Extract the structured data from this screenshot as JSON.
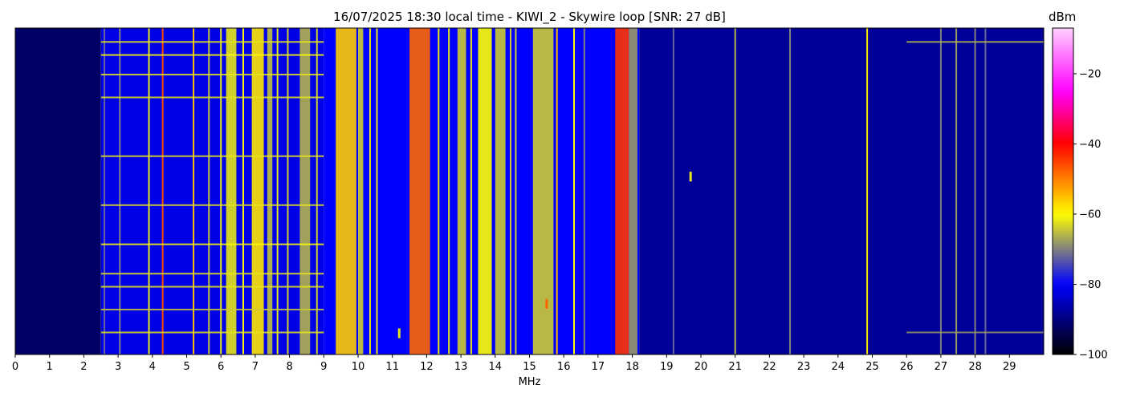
{
  "chart_data": {
    "type": "heatmap",
    "title": "16/07/2025 18:30 local time - KIWI_2 - Skywire loop [SNR: 27 dB]",
    "xlabel": "MHz",
    "ylabel": "",
    "xlim": [
      0,
      30
    ],
    "x_ticks": [
      "0",
      "1",
      "2",
      "3",
      "4",
      "5",
      "6",
      "7",
      "8",
      "9",
      "10",
      "11",
      "12",
      "13",
      "14",
      "15",
      "16",
      "17",
      "18",
      "19",
      "20",
      "21",
      "22",
      "23",
      "24",
      "25",
      "26",
      "27",
      "28",
      "29"
    ],
    "colorbar": {
      "label": "dBm",
      "range": [
        -100,
        -7
      ],
      "ticks": [
        "−20",
        "−40",
        "−60",
        "−80",
        "−100"
      ],
      "tick_values": [
        -20,
        -40,
        -60,
        -80,
        -100
      ],
      "colormap": [
        "#000000",
        "#0000ff",
        "#ffff00",
        "#ff0000",
        "#ff00ff",
        "#ffd0ff"
      ],
      "colormap_stops": [
        -100,
        -80,
        -60,
        -40,
        -25,
        -7
      ]
    },
    "noise_floor_dbm": [
      {
        "from": 0,
        "to": 2.5,
        "dbm": -92
      },
      {
        "from": 2.5,
        "to": 9,
        "dbm": -82
      },
      {
        "from": 9,
        "to": 18.2,
        "dbm": -80
      },
      {
        "from": 18.2,
        "to": 30,
        "dbm": -88
      }
    ],
    "bands": [
      {
        "from": 6.15,
        "to": 6.45,
        "dbm": -62
      },
      {
        "from": 6.9,
        "to": 7.25,
        "dbm": -58
      },
      {
        "from": 7.35,
        "to": 7.5,
        "dbm": -65
      },
      {
        "from": 8.3,
        "to": 8.6,
        "dbm": -66
      },
      {
        "from": 9.35,
        "to": 9.95,
        "dbm": -56
      },
      {
        "from": 10.0,
        "to": 10.15,
        "dbm": -64
      },
      {
        "from": 11.5,
        "to": 12.1,
        "dbm": -48
      },
      {
        "from": 12.9,
        "to": 13.15,
        "dbm": -64
      },
      {
        "from": 13.5,
        "to": 13.9,
        "dbm": -60
      },
      {
        "from": 14.0,
        "to": 14.3,
        "dbm": -64
      },
      {
        "from": 15.1,
        "to": 15.7,
        "dbm": -64
      },
      {
        "from": 17.5,
        "to": 17.9,
        "dbm": -44
      },
      {
        "from": 17.9,
        "to": 18.15,
        "dbm": -68
      }
    ],
    "lines": [
      {
        "x": 2.6,
        "dbm": -72
      },
      {
        "x": 3.05,
        "dbm": -70
      },
      {
        "x": 3.9,
        "dbm": -62
      },
      {
        "x": 4.3,
        "dbm": -46
      },
      {
        "x": 5.2,
        "dbm": -55
      },
      {
        "x": 5.65,
        "dbm": -65
      },
      {
        "x": 6.0,
        "dbm": -62
      },
      {
        "x": 6.65,
        "dbm": -60
      },
      {
        "x": 7.65,
        "dbm": -62
      },
      {
        "x": 7.95,
        "dbm": -64
      },
      {
        "x": 8.8,
        "dbm": -64
      },
      {
        "x": 10.35,
        "dbm": -62
      },
      {
        "x": 10.55,
        "dbm": -62
      },
      {
        "x": 12.35,
        "dbm": -62
      },
      {
        "x": 12.65,
        "dbm": -62
      },
      {
        "x": 13.3,
        "dbm": -62
      },
      {
        "x": 14.45,
        "dbm": -64
      },
      {
        "x": 14.6,
        "dbm": -64
      },
      {
        "x": 15.8,
        "dbm": -55
      },
      {
        "x": 16.3,
        "dbm": -60
      },
      {
        "x": 16.6,
        "dbm": -70
      },
      {
        "x": 19.2,
        "dbm": -72
      },
      {
        "x": 21.0,
        "dbm": -66
      },
      {
        "x": 22.6,
        "dbm": -70
      },
      {
        "x": 24.85,
        "dbm": -58
      },
      {
        "x": 27.0,
        "dbm": -70
      },
      {
        "x": 27.45,
        "dbm": -68
      },
      {
        "x": 28.0,
        "dbm": -70
      },
      {
        "x": 28.3,
        "dbm": -72
      }
    ],
    "rows_count": 100,
    "horizontal_streaks": [
      {
        "row": 4,
        "from": 2.5,
        "to": 9.0,
        "dbm": -62
      },
      {
        "row": 8,
        "from": 2.5,
        "to": 9.0,
        "dbm": -60
      },
      {
        "row": 14,
        "from": 2.5,
        "to": 9.0,
        "dbm": -62
      },
      {
        "row": 21,
        "from": 2.5,
        "to": 9.0,
        "dbm": -62
      },
      {
        "row": 39,
        "from": 2.5,
        "to": 9.0,
        "dbm": -62
      },
      {
        "row": 54,
        "from": 2.5,
        "to": 9.0,
        "dbm": -62
      },
      {
        "row": 66,
        "from": 2.5,
        "to": 9.0,
        "dbm": -60
      },
      {
        "row": 75,
        "from": 2.5,
        "to": 9.0,
        "dbm": -62
      },
      {
        "row": 79,
        "from": 2.5,
        "to": 9.0,
        "dbm": -62
      },
      {
        "row": 86,
        "from": 2.5,
        "to": 9.0,
        "dbm": -64
      },
      {
        "row": 93,
        "from": 2.5,
        "to": 9.0,
        "dbm": -62
      },
      {
        "row": 4,
        "from": 26.0,
        "to": 30.0,
        "dbm": -66
      },
      {
        "row": 93,
        "from": 26.0,
        "to": 30.0,
        "dbm": -68
      }
    ],
    "spots": [
      {
        "x": 19.7,
        "row": 44,
        "dbm": -62
      },
      {
        "x": 15.5,
        "row": 83,
        "dbm": -48
      },
      {
        "x": 11.2,
        "row": 92,
        "dbm": -62
      }
    ]
  }
}
